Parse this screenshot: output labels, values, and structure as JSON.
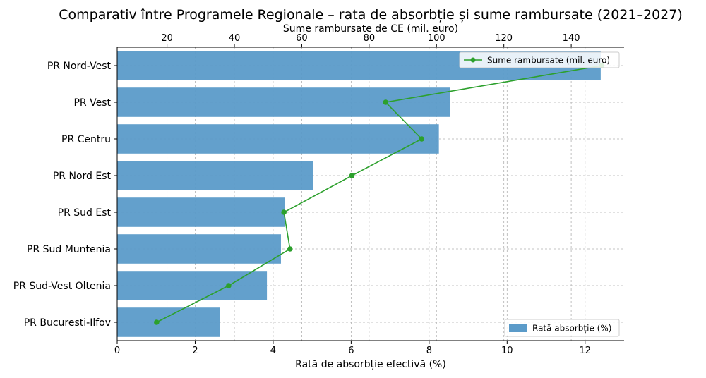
{
  "chart_data": {
    "type": "bar",
    "orientation": "horizontal",
    "title": "Comparativ între Programele Regionale – rata de absorbție și sume rambursate (2021–2027)",
    "categories": [
      "PR Nord-Vest",
      "PR Vest",
      "PR Centru",
      "PR Nord Est",
      "PR Sud Est",
      "PR Sud Muntenia",
      "PR Sud-Vest Oltenia",
      "PR Bucuresti-Ilfov"
    ],
    "series": [
      {
        "name": "Rată absorbție (%)",
        "type": "bar",
        "axis": "bottom",
        "color": "#5b9bc9",
        "values": [
          12.4,
          8.53,
          8.25,
          5.03,
          4.3,
          4.2,
          3.84,
          2.63
        ]
      },
      {
        "name": "Sume rambursate (mil. euro)",
        "type": "line",
        "axis": "top",
        "color": "#2ca02c",
        "values": [
          149.1,
          84.9,
          95.6,
          74.9,
          54.7,
          56.5,
          38.3,
          16.9
        ]
      }
    ],
    "xlabel": "Rată de absorbție efectivă (%)",
    "xlim": [
      0,
      13
    ],
    "xticks": [
      0,
      2,
      4,
      6,
      8,
      10,
      12
    ],
    "x2label": "Sume rambursate de CE (mil. euro)",
    "x2lim": [
      5.2,
      155.7
    ],
    "x2ticks": [
      20,
      40,
      60,
      80,
      100,
      120,
      140
    ],
    "grid": true,
    "legend_line_placement": "top-right",
    "legend_bar_placement": "bottom-right"
  }
}
